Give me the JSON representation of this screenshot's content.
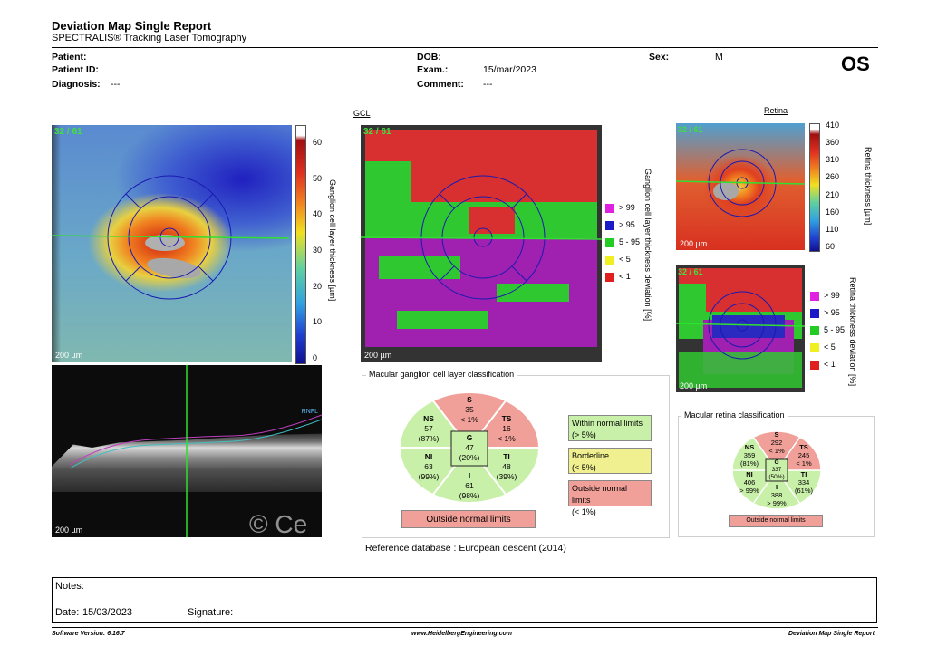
{
  "header": {
    "title": "Deviation Map Single Report",
    "subtitle": "SPECTRALIS® Tracking Laser Tomography",
    "eye": "OS",
    "fields": {
      "patient_label": "Patient:",
      "patient_value": "",
      "patient_id_label": "Patient ID:",
      "patient_id_value": "",
      "diagnosis_label": "Diagnosis:",
      "diagnosis_value": "---",
      "dob_label": "DOB:",
      "dob_value": "",
      "exam_label": "Exam.:",
      "exam_value": "15/mar/2023",
      "comment_label": "Comment:",
      "comment_value": "---",
      "sex_label": "Sex:",
      "sex_value": "M"
    }
  },
  "thickness_map": {
    "frame_label": "32 / 61",
    "scale": "200 µm",
    "colorbar_ticks": [
      "60",
      "50",
      "40",
      "30",
      "20",
      "10",
      "0"
    ],
    "colorbar_label": "Ganglion cell layer thickness [µm]"
  },
  "oct": {
    "scale": "200 µm",
    "layer_label": "RNFL",
    "watermark": "© Ce"
  },
  "gcl_deviation": {
    "title": "GCL",
    "frame_label": "32 / 61",
    "scale": "200 µm",
    "axis_label": "Ganglion cell layer thickness deviation [%]",
    "legend": [
      {
        "label": "> 99",
        "color": "#e020e0"
      },
      {
        "label": "> 95",
        "color": "#1a1ac8"
      },
      {
        "label": "5 - 95",
        "color": "#22cc22"
      },
      {
        "label": "< 5",
        "color": "#f0f020"
      },
      {
        "label": "< 1",
        "color": "#e02020"
      }
    ]
  },
  "retina": {
    "title": "Retina",
    "frame_label": "32 / 61",
    "scale": "200 µm",
    "colorbar_ticks": [
      "410",
      "360",
      "310",
      "260",
      "210",
      "160",
      "110",
      "60"
    ],
    "colorbar_label": "Retina thickness [µm]",
    "dev_frame_label": "32 / 61",
    "dev_scale": "200 µm",
    "dev_axis_label": "Retina thickness deviation [%]",
    "legend": [
      {
        "label": "> 99",
        "color": "#e020e0"
      },
      {
        "label": "> 95",
        "color": "#1a1ac8"
      },
      {
        "label": "5 - 95",
        "color": "#22cc22"
      },
      {
        "label": "< 5",
        "color": "#f0f020"
      },
      {
        "label": "< 1",
        "color": "#e02020"
      }
    ]
  },
  "gcl_classification": {
    "title": "Macular ganglion cell layer classification",
    "sectors": {
      "S": {
        "name": "S",
        "value": "35",
        "pct": "< 1%"
      },
      "TS": {
        "name": "TS",
        "value": "16",
        "pct": "< 1%"
      },
      "NS": {
        "name": "NS",
        "value": "57",
        "pct": "(87%)"
      },
      "G": {
        "name": "G",
        "value": "47",
        "pct": "(20%)"
      },
      "NI": {
        "name": "NI",
        "value": "63",
        "pct": "(99%)"
      },
      "TI": {
        "name": "TI",
        "value": "48",
        "pct": "(39%)"
      },
      "I": {
        "name": "I",
        "value": "61",
        "pct": "(98%)"
      }
    },
    "result": "Outside normal limits",
    "key": {
      "within": "Within normal limits",
      "within_pct": "(> 5%)",
      "borderline": "Borderline",
      "borderline_pct": "(< 5%)",
      "outside": "Outside normal limits",
      "outside_pct": "(< 1%)"
    },
    "reference": "Reference database : European descent (2014)"
  },
  "retina_classification": {
    "title": "Macular retina classification",
    "sectors": {
      "S": {
        "name": "S",
        "value": "292",
        "pct": "< 1%"
      },
      "TS": {
        "name": "TS",
        "value": "245",
        "pct": "< 1%"
      },
      "NS": {
        "name": "NS",
        "value": "359",
        "pct": "(81%)"
      },
      "G": {
        "name": "G",
        "value": "337",
        "pct": "(50%)"
      },
      "NI": {
        "name": "NI",
        "value": "406",
        "pct": "> 99%"
      },
      "TI": {
        "name": "TI",
        "value": "334",
        "pct": "(61%)"
      },
      "I": {
        "name": "I",
        "value": "388",
        "pct": "> 99%"
      }
    },
    "result": "Outside normal limits"
  },
  "notes": {
    "notes_label": "Notes:",
    "date_label": "Date:",
    "date_value": "15/03/2023",
    "signature_label": "Signature:"
  },
  "footer": {
    "software": "Software Version: 6.16.7",
    "website": "www.HeidelbergEngineering.com",
    "report": "Deviation Map Single Report"
  },
  "colors": {
    "normal": "#c8f0a8",
    "borderline": "#f0f090",
    "outside": "#f0a098"
  }
}
